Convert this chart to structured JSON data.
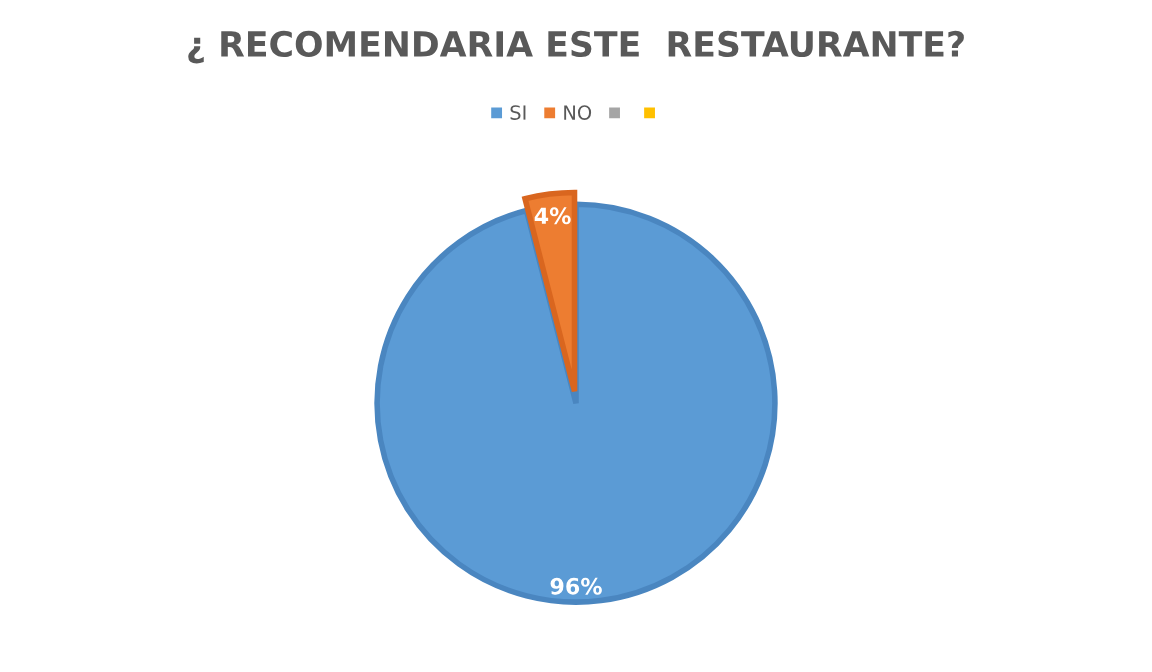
{
  "chart_data": {
    "type": "pie",
    "title": "¿ RECOMENDARIA ESTE  RESTAURANTE?",
    "categories": [
      "SI",
      "NO",
      null,
      null
    ],
    "values": [
      96,
      4,
      0,
      0
    ],
    "colors": [
      "#5b9bd5",
      "#ed7d31",
      "#a5a5a5",
      "#ffc000"
    ],
    "value_labels": [
      "96%",
      "4%",
      null,
      null
    ],
    "legend": "top"
  }
}
